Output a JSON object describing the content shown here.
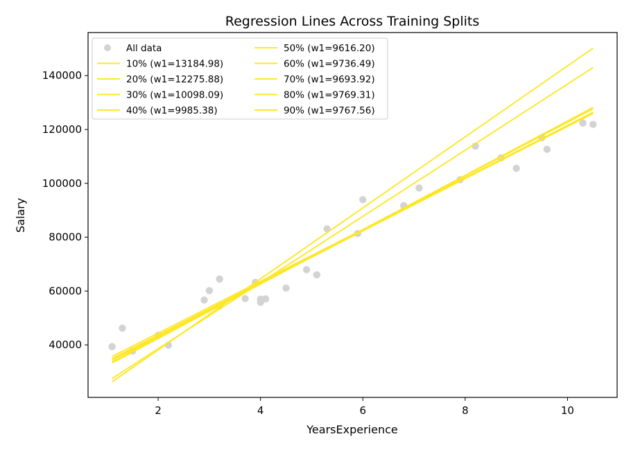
{
  "chart_data": {
    "type": "scatter",
    "title": "Regression Lines Across Training Splits",
    "xlabel": "YearsExperience",
    "ylabel": "Salary",
    "xlim": [
      0.63,
      10.97
    ],
    "ylim": [
      20500,
      156000
    ],
    "xticks": [
      2,
      4,
      6,
      8,
      10
    ],
    "yticks": [
      40000,
      60000,
      80000,
      100000,
      120000,
      140000
    ],
    "grid": false,
    "legend_position": "top-left",
    "colors": {
      "scatter": "#d3d3d3",
      "line": "#fde725"
    },
    "scatter": {
      "name": "All data",
      "points": [
        [
          1.1,
          39343
        ],
        [
          1.3,
          46205
        ],
        [
          1.5,
          37731
        ],
        [
          2.0,
          43525
        ],
        [
          2.2,
          39891
        ],
        [
          2.9,
          56642
        ],
        [
          3.0,
          60150
        ],
        [
          3.2,
          54445
        ],
        [
          3.2,
          64445
        ],
        [
          3.7,
          57189
        ],
        [
          3.9,
          63218
        ],
        [
          4.0,
          55794
        ],
        [
          4.0,
          56957
        ],
        [
          4.1,
          57081
        ],
        [
          4.5,
          61111
        ],
        [
          4.9,
          67938
        ],
        [
          5.1,
          66029
        ],
        [
          5.3,
          83088
        ],
        [
          5.9,
          81363
        ],
        [
          6.0,
          93940
        ],
        [
          6.8,
          91738
        ],
        [
          7.1,
          98273
        ],
        [
          7.9,
          101302
        ],
        [
          8.2,
          113812
        ],
        [
          8.7,
          109431
        ],
        [
          9.0,
          105582
        ],
        [
          9.5,
          116969
        ],
        [
          9.6,
          112635
        ],
        [
          10.3,
          122391
        ],
        [
          10.5,
          121872
        ]
      ]
    },
    "series": [
      {
        "name": "10% (w1=13184.98)",
        "x": [
          1.1,
          10.5
        ],
        "y": [
          26300,
          150200
        ]
      },
      {
        "name": "20% (w1=12275.88)",
        "x": [
          1.1,
          10.5
        ],
        "y": [
          27500,
          143000
        ]
      },
      {
        "name": "30% (w1=10098.09)",
        "x": [
          1.1,
          10.5
        ],
        "y": [
          33300,
          128200
        ]
      },
      {
        "name": "40% (w1=9985.38)",
        "x": [
          1.1,
          10.5
        ],
        "y": [
          33800,
          127700
        ]
      },
      {
        "name": "50% (w1=9616.20)",
        "x": [
          1.1,
          10.5
        ],
        "y": [
          35700,
          126100
        ]
      },
      {
        "name": "60% (w1=9736.49)",
        "x": [
          1.1,
          10.5
        ],
        "y": [
          34800,
          126300
        ]
      },
      {
        "name": "70% (w1=9693.92)",
        "x": [
          1.1,
          10.5
        ],
        "y": [
          34900,
          126000
        ]
      },
      {
        "name": "80% (w1=9769.31)",
        "x": [
          1.1,
          10.5
        ],
        "y": [
          34600,
          126400
        ]
      },
      {
        "name": "90% (w1=9767.56)",
        "x": [
          1.1,
          10.5
        ],
        "y": [
          34500,
          126300
        ]
      }
    ]
  }
}
